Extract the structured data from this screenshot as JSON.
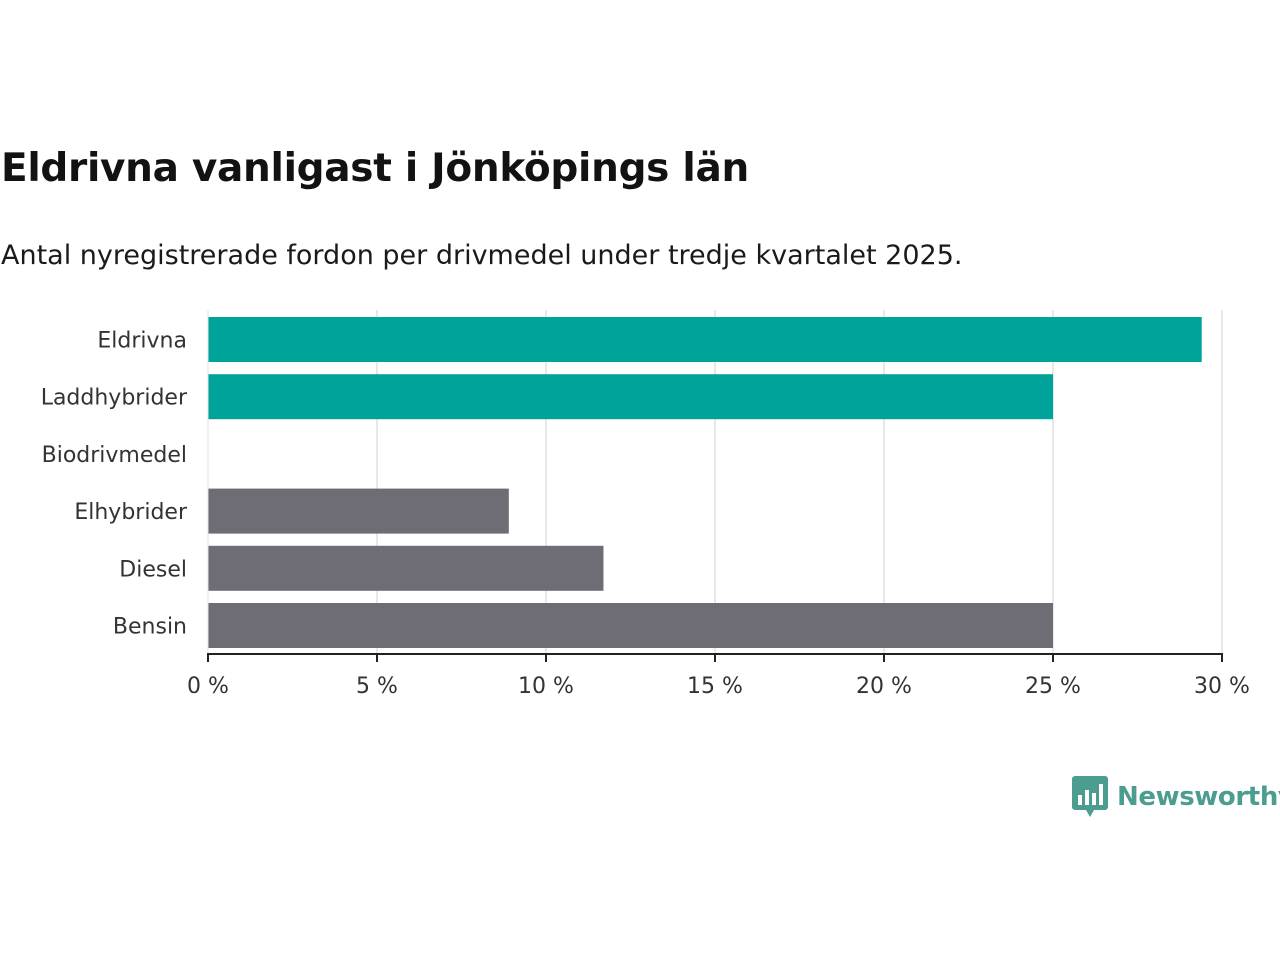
{
  "header": {
    "title": "Eldrivna vanligast i Jönköpings län",
    "subtitle": "Antal nyregistrerade fordon per drivmedel under tredje kvartalet 2025."
  },
  "chart_data": {
    "type": "bar",
    "orientation": "horizontal",
    "title": "Eldrivna vanligast i Jönköpings län",
    "subtitle": "Antal nyregistrerade fordon per drivmedel under tredje kvartalet 2025.",
    "xlabel": "",
    "ylabel": "",
    "xlim": [
      0,
      30
    ],
    "x_ticks": [
      0,
      5,
      10,
      15,
      20,
      25,
      30
    ],
    "tick_suffix": " %",
    "grid": true,
    "categories": [
      "Eldrivna",
      "Laddhybrider",
      "Biodrivmedel",
      "Elhybrider",
      "Diesel",
      "Bensin"
    ],
    "values": [
      29.4,
      25.0,
      0,
      8.9,
      11.7,
      25.0
    ],
    "colors": [
      "#00a39a",
      "#00a39a",
      "#00a39a",
      "#6e6d75",
      "#6e6d75",
      "#6e6d75"
    ]
  },
  "brand": {
    "name": "Newsworthy",
    "icon": "newsworthy-logo-icon",
    "color": "#4a9d8f"
  }
}
